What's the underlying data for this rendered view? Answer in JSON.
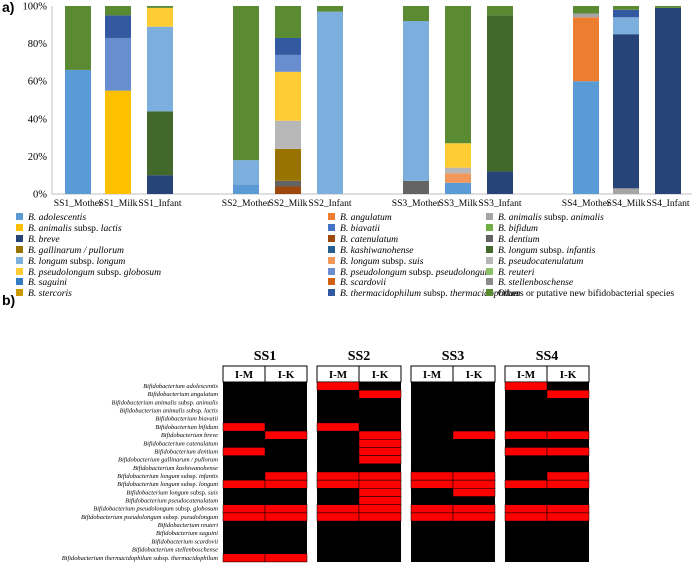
{
  "panel_a_label": "a)",
  "panel_b_label": "b)",
  "colors": {
    "adolescentis": "#5b9bd5",
    "angulatum": "#ed7d31",
    "animalis_animalis": "#a5a5a5",
    "animalis_lactis": "#ffc000",
    "biavatii": "#4472c4",
    "bifidum": "#70ad47",
    "breve": "#264478",
    "catenulatum": "#9e480e",
    "dentium": "#636363",
    "gallinarum": "#997300",
    "kashiwanohense": "#255e91",
    "infantis": "#43682b",
    "longum": "#7cafdd",
    "suis": "#f1975a",
    "pseudocatenulatum": "#b7b7b7",
    "globosum": "#ffcd33",
    "pseudolongum": "#698ed0",
    "reuteri": "#8cc168",
    "saguini": "#327dc2",
    "scardovii": "#d26012",
    "stellenbosche": "#8b8b8b",
    "stercoris": "#cc9a00",
    "thermacidophilum": "#335aa1",
    "others": "#5a8a32",
    "heat_present": "#ff0000",
    "heat_absent": "#000000"
  },
  "chart_data": [
    {
      "type": "bar",
      "stacked": true,
      "title": "",
      "ylabel": "",
      "xlabel": "",
      "ylim": [
        0,
        100
      ],
      "yticks": [
        "0%",
        "20%",
        "40%",
        "60%",
        "80%",
        "100%"
      ],
      "categories": [
        "SS1_Mother",
        "SS1_Milk",
        "SS1_Infant",
        "SS2_Mother",
        "SS2_Milk",
        "SS2_Infant",
        "SS3_Mother",
        "SS3_Milk",
        "SS3_Infant",
        "SS4_Mother",
        "SS4_Milk",
        "SS4_Infant"
      ],
      "series": [
        {
          "key": "adolescentis",
          "name": "B. adolescentis",
          "values": [
            66,
            0,
            0,
            5,
            0,
            0,
            0,
            6,
            0,
            60,
            0,
            0
          ]
        },
        {
          "key": "angulatum",
          "name": "B. angulatum",
          "values": [
            0,
            0,
            0,
            0,
            0,
            0,
            0,
            0,
            0,
            34,
            0,
            0
          ]
        },
        {
          "key": "animalis_animalis",
          "name": "B. animalis subsp. animalis",
          "values": [
            0,
            0,
            0,
            0,
            0,
            0,
            0,
            0,
            0,
            2,
            3,
            0
          ]
        },
        {
          "key": "animalis_lactis",
          "name": "B. animalis subsp. lactis",
          "values": [
            0,
            55,
            0,
            0,
            0,
            0,
            0,
            0,
            0,
            0,
            0,
            0
          ]
        },
        {
          "key": "biavatii",
          "name": "B. biavatii",
          "values": [
            0,
            0,
            0,
            0,
            0,
            0,
            0,
            0,
            0,
            0,
            0,
            0
          ]
        },
        {
          "key": "bifidum",
          "name": "B. bifidum",
          "values": [
            0,
            0,
            0,
            0,
            0,
            0,
            0,
            0,
            0,
            0,
            0,
            0
          ]
        },
        {
          "key": "breve",
          "name": "B. breve",
          "values": [
            0,
            0,
            10,
            0,
            0,
            0,
            0,
            0,
            12,
            0,
            82,
            99
          ]
        },
        {
          "key": "catenulatum",
          "name": "B. catenulatum",
          "values": [
            0,
            0,
            0,
            0,
            4,
            0,
            0,
            0,
            0,
            0,
            0,
            0
          ]
        },
        {
          "key": "dentium",
          "name": "B. dentium",
          "values": [
            0,
            0,
            0,
            0,
            3,
            0,
            7,
            0,
            0,
            0,
            0,
            0
          ]
        },
        {
          "key": "gallinarum",
          "name": "B. gallinarum / pullorum",
          "values": [
            0,
            0,
            0,
            0,
            17,
            0,
            0,
            0,
            0,
            0,
            0,
            0
          ]
        },
        {
          "key": "kashiwanohense",
          "name": "B. kashiwanohense",
          "values": [
            0,
            0,
            0,
            0,
            0,
            0,
            0,
            0,
            0,
            0,
            0,
            0
          ]
        },
        {
          "key": "infantis",
          "name": "B. longum subsp. infantis",
          "values": [
            0,
            0,
            34,
            0,
            0,
            0,
            0,
            0,
            83,
            0,
            0,
            0
          ]
        },
        {
          "key": "longum",
          "name": "B. longum subsp. longum",
          "values": [
            0,
            0,
            45,
            13,
            0,
            97,
            85,
            0,
            0,
            0,
            9,
            0
          ]
        },
        {
          "key": "suis",
          "name": "B. longum subsp. suis",
          "values": [
            0,
            0,
            0,
            0,
            0,
            0,
            0,
            5,
            0,
            0,
            0,
            0
          ]
        },
        {
          "key": "pseudocatenulatum",
          "name": "B. pseudocatenulatum",
          "values": [
            0,
            0,
            0,
            0,
            15,
            0,
            0,
            3,
            0,
            0,
            0,
            0
          ]
        },
        {
          "key": "globosum",
          "name": "B. pseudolongum subsp. globosum",
          "values": [
            0,
            0,
            10,
            0,
            26,
            0,
            0,
            13,
            0,
            0,
            0,
            0
          ]
        },
        {
          "key": "pseudolongum",
          "name": "B. pseudolongum subsp. pseudolongum",
          "values": [
            0,
            28,
            0,
            0,
            9,
            0,
            0,
            0,
            0,
            0,
            0,
            0
          ]
        },
        {
          "key": "reuteri",
          "name": "B. reuteri",
          "values": [
            0,
            0,
            0,
            0,
            0,
            0,
            0,
            0,
            0,
            0,
            0,
            0
          ]
        },
        {
          "key": "saguini",
          "name": "B. saguini",
          "values": [
            0,
            0,
            0,
            0,
            0,
            0,
            0,
            0,
            0,
            0,
            0,
            0
          ]
        },
        {
          "key": "scardovii",
          "name": "B. scardovii",
          "values": [
            0,
            0,
            0,
            0,
            0,
            0,
            0,
            0,
            0,
            0,
            0,
            0
          ]
        },
        {
          "key": "stellenbosche",
          "name": "B. stellenboschense",
          "values": [
            0,
            0,
            0,
            0,
            0,
            0,
            0,
            0,
            0,
            0,
            0,
            0
          ]
        },
        {
          "key": "stercoris",
          "name": "B. stercoris",
          "values": [
            0,
            0,
            0,
            0,
            0,
            0,
            0,
            0,
            0,
            0,
            0,
            0
          ]
        },
        {
          "key": "thermacidophilum",
          "name": "B. thermacidophilum subsp. thermacidophilum",
          "values": [
            0,
            12,
            0,
            0,
            9,
            0,
            0,
            0,
            0,
            0,
            4,
            0
          ]
        },
        {
          "key": "others",
          "name": "Others or putative new bifidobacterial species",
          "values": [
            34,
            5,
            1,
            82,
            17,
            3,
            8,
            73,
            5,
            4,
            2,
            1
          ]
        }
      ]
    },
    {
      "type": "heatmap",
      "groups": [
        "SS1",
        "SS2",
        "SS3",
        "SS4"
      ],
      "subcolumns": [
        "I-M",
        "I-K"
      ],
      "rows": [
        "Bifidobacterium adolescentis",
        "Bifidobacterium angulatum",
        "Bifidobacterium animalis subsp. animalis",
        "Bifidobacterium animalis subsp. lactis",
        "Bifidobacterium biavatii",
        "Bifidobacterium bifidum",
        "Bifidobacterium breve",
        "Bifidobacterium catenulatum",
        "Bifidobacterium dentium",
        "Bifidobacterium gallinarum / pullorum",
        "Bifidobacterium kashiwanohense",
        "Bifidobacterium longum subsp. infantis",
        "Bifidobacterium longum subsp. longum",
        "Bifidobacterium longum subsp. suis",
        "Bifidobacterium pseudocatenulatum",
        "Bifidobacterium pseudolongum subsp. globosum",
        "Bifidobacterium pseudolongum subsp. pseudolongum",
        "Bifidobacterium reuteri",
        "Bifidobacterium saguini",
        "Bifidobacterium scardovii",
        "Bifidobacterium stellenboschense",
        "Bifidobacterium thermacidophilum subsp. thermacidophilum"
      ],
      "values": [
        [
          0,
          0,
          1,
          0,
          0,
          0,
          1,
          0
        ],
        [
          0,
          0,
          0,
          1,
          0,
          0,
          0,
          1
        ],
        [
          0,
          0,
          0,
          0,
          0,
          0,
          0,
          0
        ],
        [
          0,
          0,
          0,
          0,
          0,
          0,
          0,
          0
        ],
        [
          0,
          0,
          0,
          0,
          0,
          0,
          0,
          0
        ],
        [
          1,
          0,
          1,
          0,
          0,
          0,
          0,
          0
        ],
        [
          0,
          1,
          0,
          1,
          0,
          1,
          1,
          1
        ],
        [
          0,
          0,
          0,
          1,
          0,
          0,
          0,
          0
        ],
        [
          1,
          0,
          0,
          1,
          0,
          0,
          1,
          1
        ],
        [
          0,
          0,
          0,
          1,
          0,
          0,
          0,
          0
        ],
        [
          0,
          0,
          0,
          0,
          0,
          0,
          0,
          0
        ],
        [
          0,
          1,
          1,
          1,
          1,
          1,
          0,
          1
        ],
        [
          1,
          1,
          1,
          1,
          1,
          1,
          1,
          1
        ],
        [
          0,
          0,
          0,
          1,
          0,
          1,
          0,
          0
        ],
        [
          0,
          0,
          0,
          1,
          0,
          0,
          0,
          0
        ],
        [
          1,
          1,
          1,
          1,
          1,
          1,
          1,
          1
        ],
        [
          1,
          1,
          1,
          1,
          1,
          1,
          1,
          1
        ],
        [
          0,
          0,
          0,
          0,
          0,
          0,
          0,
          0
        ],
        [
          0,
          0,
          0,
          0,
          0,
          0,
          0,
          0
        ],
        [
          0,
          0,
          0,
          0,
          0,
          0,
          0,
          0
        ],
        [
          0,
          0,
          0,
          0,
          0,
          0,
          0,
          0
        ],
        [
          1,
          1,
          0,
          0,
          0,
          0,
          0,
          0
        ]
      ]
    }
  ]
}
